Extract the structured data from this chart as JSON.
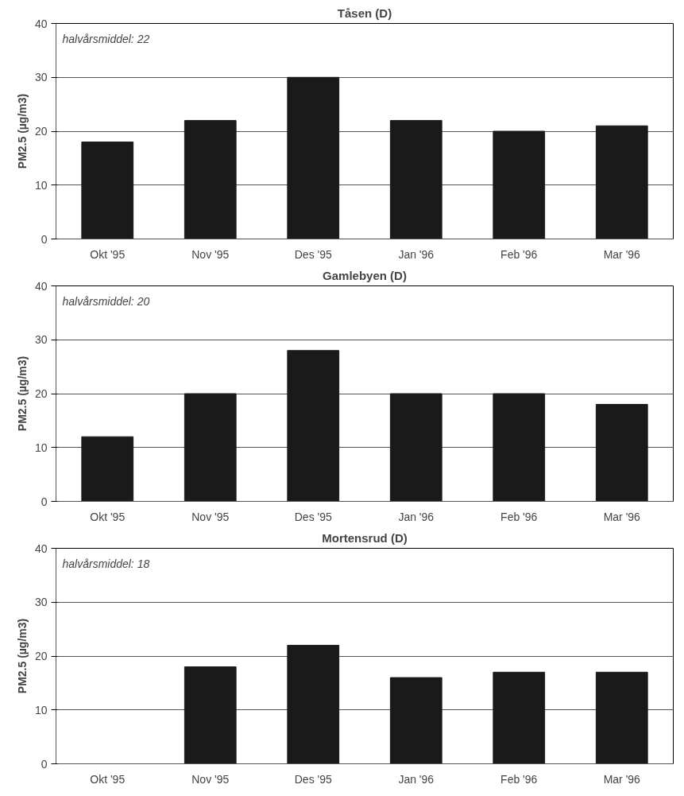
{
  "chart_data": [
    {
      "type": "bar",
      "title": "Tåsen (D)",
      "ylabel": "PM2.5 (µg/m3)",
      "categories": [
        "Okt '95",
        "Nov '95",
        "Des '95",
        "Jan '96",
        "Feb '96",
        "Mar '96"
      ],
      "series": [
        {
          "color": "#1a1a1a",
          "values": [
            18,
            22,
            30,
            22,
            20,
            21
          ]
        }
      ],
      "ylim": [
        0,
        40
      ],
      "yticks": [
        0,
        10,
        20,
        30,
        40
      ],
      "grid": "y",
      "annotations": [
        "halvårsmiddel: 22"
      ]
    },
    {
      "type": "bar",
      "title": "Gamlebyen (D)",
      "ylabel": "PM2.5 (µg/m3)",
      "categories": [
        "Okt '95",
        "Nov '95",
        "Des '95",
        "Jan '96",
        "Feb '96",
        "Mar '96"
      ],
      "series": [
        {
          "color": "#1a1a1a",
          "values": [
            12,
            20,
            28,
            20,
            20,
            18
          ]
        }
      ],
      "ylim": [
        0,
        40
      ],
      "yticks": [
        0,
        10,
        20,
        30,
        40
      ],
      "grid": "y",
      "annotations": [
        "halvårsmiddel: 20"
      ]
    },
    {
      "type": "bar",
      "title": "Mortensrud (D)",
      "ylabel": "PM2.5 (µg/m3)",
      "categories": [
        "Okt '95",
        "Nov '95",
        "Des '95",
        "Jan '96",
        "Feb '96",
        "Mar '96"
      ],
      "series": [
        {
          "color": "#1a1a1a",
          "values": [
            null,
            18,
            22,
            16,
            17,
            17
          ]
        }
      ],
      "ylim": [
        0,
        40
      ],
      "yticks": [
        0,
        10,
        20,
        30,
        40
      ],
      "grid": "y",
      "annotations": [
        "halvårsmiddel: 18"
      ]
    }
  ]
}
